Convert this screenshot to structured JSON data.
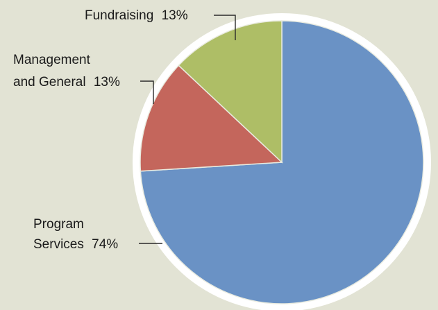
{
  "chart_data": {
    "type": "pie",
    "title": "",
    "start_angle_deg": 0,
    "direction": "clockwise",
    "slices": [
      {
        "name": "Program Services",
        "label_lines": [
          "Program",
          "Services"
        ],
        "value": 74,
        "display": "74%",
        "color": "#6a92c5"
      },
      {
        "name": "Management and General",
        "label_lines": [
          "Management",
          "and General"
        ],
        "value": 13,
        "display": "13%",
        "color": "#c4665c"
      },
      {
        "name": "Fundraising",
        "label_lines": [
          "Fundraising"
        ],
        "value": 13,
        "display": "13%",
        "color": "#aebe66"
      }
    ],
    "legend": "none",
    "labels": "outside-with-leader-lines"
  },
  "colors": {
    "background": "#e2e3d4",
    "pie_rim": "#ffffff"
  }
}
